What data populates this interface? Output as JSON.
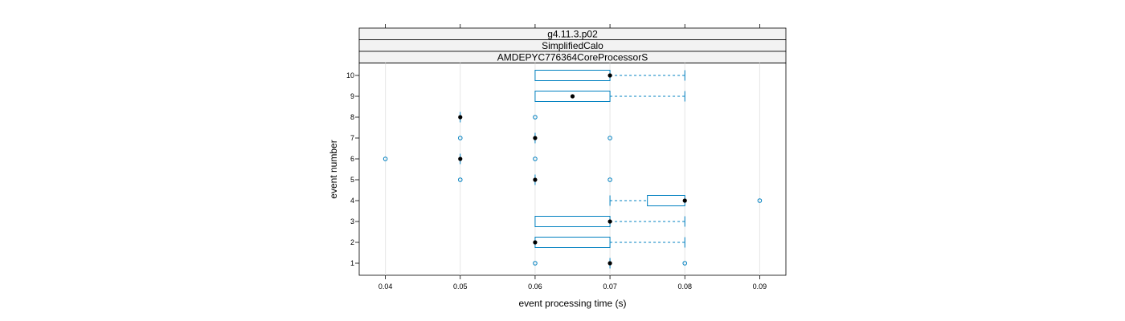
{
  "chart_data": {
    "type": "boxplot",
    "strips": [
      "g4.11.3.p02",
      "SimplifiedCalo",
      "AMDEPYC776364CoreProcessorS"
    ],
    "xlabel": "event processing time (s)",
    "ylabel": "event number",
    "xlim": [
      0.0365,
      0.0935
    ],
    "x_ticks": [
      0.04,
      0.05,
      0.06,
      0.07,
      0.08,
      0.09
    ],
    "x_tick_labels": [
      "0.04",
      "0.05",
      "0.06",
      "0.07",
      "0.08",
      "0.09"
    ],
    "y_ticks": [
      1,
      2,
      3,
      4,
      5,
      6,
      7,
      8,
      9,
      10
    ],
    "y_tick_labels": [
      "1",
      "2",
      "3",
      "4",
      "5",
      "6",
      "7",
      "8",
      "9",
      "10"
    ],
    "grid": "vertical",
    "colors": {
      "box": "#0080c0",
      "whisker": "#0080c0",
      "median": "#000000",
      "outlier": "#0080c0"
    },
    "boxes": [
      {
        "event": 1,
        "median": 0.07,
        "q1": 0.07,
        "q3": 0.07,
        "whisker_low": 0.07,
        "whisker_high": 0.07,
        "outliers": [
          0.06,
          0.08
        ]
      },
      {
        "event": 2,
        "median": 0.06,
        "q1": 0.06,
        "q3": 0.07,
        "whisker_low": 0.06,
        "whisker_high": 0.08,
        "outliers": []
      },
      {
        "event": 3,
        "median": 0.07,
        "q1": 0.06,
        "q3": 0.07,
        "whisker_low": 0.06,
        "whisker_high": 0.08,
        "outliers": []
      },
      {
        "event": 4,
        "median": 0.08,
        "q1": 0.075,
        "q3": 0.08,
        "whisker_low": 0.07,
        "whisker_high": 0.08,
        "outliers": [
          0.09
        ]
      },
      {
        "event": 5,
        "median": 0.06,
        "q1": 0.06,
        "q3": 0.06,
        "whisker_low": 0.06,
        "whisker_high": 0.06,
        "outliers": [
          0.05,
          0.07
        ]
      },
      {
        "event": 6,
        "median": 0.05,
        "q1": 0.05,
        "q3": 0.05,
        "whisker_low": 0.05,
        "whisker_high": 0.05,
        "outliers": [
          0.04,
          0.06
        ]
      },
      {
        "event": 7,
        "median": 0.06,
        "q1": 0.06,
        "q3": 0.06,
        "whisker_low": 0.06,
        "whisker_high": 0.06,
        "outliers": [
          0.05,
          0.07
        ]
      },
      {
        "event": 8,
        "median": 0.05,
        "q1": 0.05,
        "q3": 0.05,
        "whisker_low": 0.05,
        "whisker_high": 0.05,
        "outliers": [
          0.06
        ]
      },
      {
        "event": 9,
        "median": 0.065,
        "q1": 0.06,
        "q3": 0.07,
        "whisker_low": 0.06,
        "whisker_high": 0.08,
        "outliers": []
      },
      {
        "event": 10,
        "median": 0.07,
        "q1": 0.06,
        "q3": 0.07,
        "whisker_low": 0.06,
        "whisker_high": 0.08,
        "outliers": []
      }
    ]
  }
}
